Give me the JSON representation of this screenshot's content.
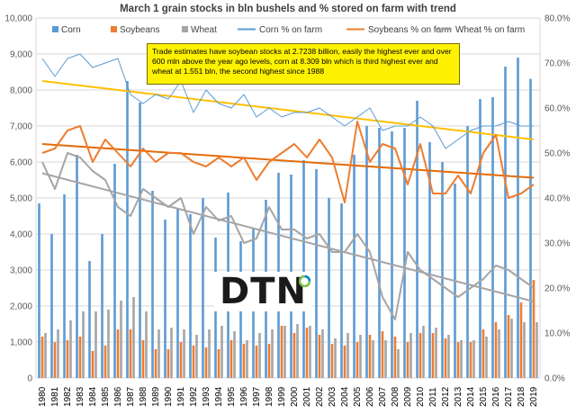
{
  "chart_data": {
    "type": "bar",
    "title": "March 1 grain stocks in bln bushels and % stored on farm with trend",
    "categories": [
      "1980",
      "1981",
      "1982",
      "1983",
      "1984",
      "1985",
      "1986",
      "1987",
      "1988",
      "1989",
      "1990",
      "1991",
      "1992",
      "1993",
      "1994",
      "1995",
      "1996",
      "1997",
      "1998",
      "1999",
      "2000",
      "2001",
      "2002",
      "2003",
      "2004",
      "2005",
      "2006",
      "2007",
      "2008",
      "2009",
      "2010",
      "2011",
      "2012",
      "2013",
      "2014",
      "2015",
      "2016",
      "2017",
      "2018",
      "2019"
    ],
    "left_axis": {
      "min": 0,
      "max": 10000,
      "ticks": [
        "0",
        "1,000",
        "2,000",
        "3,000",
        "4,000",
        "5,000",
        "6,000",
        "7,000",
        "8,000",
        "9,000",
        "10,000"
      ]
    },
    "right_axis": {
      "min": 0,
      "max": 80,
      "ticks": [
        "0.0%",
        "10.0%",
        "20.0%",
        "30.0%",
        "40.0%",
        "50.0%",
        "60.0%",
        "70.0%",
        "80.0%"
      ]
    },
    "bar_series": [
      {
        "name": "Corn",
        "color": "#5b9bd5",
        "values": [
          4850,
          4000,
          5100,
          6200,
          3250,
          4000,
          5950,
          8250,
          7650,
          5200,
          4400,
          4700,
          4550,
          5000,
          3900,
          5150,
          3800,
          4150,
          4950,
          5700,
          5650,
          6050,
          5800,
          5000,
          4850,
          6200,
          7000,
          6950,
          6850,
          6950,
          7700,
          6550,
          6000,
          5400,
          7000,
          7750,
          7800,
          8650,
          8900,
          8309
        ]
      },
      {
        "name": "Soybeans",
        "color": "#ed7d31",
        "values": [
          1150,
          1000,
          1050,
          1150,
          750,
          900,
          1350,
          1350,
          1050,
          800,
          800,
          1000,
          900,
          850,
          800,
          1050,
          950,
          900,
          950,
          1450,
          1250,
          1400,
          1200,
          950,
          900,
          1000,
          1200,
          1300,
          1150,
          1000,
          1250,
          1250,
          1100,
          1000,
          1000,
          1350,
          1550,
          1750,
          2100,
          2724
        ]
      },
      {
        "name": "Wheat",
        "color": "#a5a5a5",
        "values": [
          1250,
          1350,
          1600,
          1850,
          1850,
          1900,
          2150,
          2250,
          1850,
          1350,
          1400,
          1350,
          1200,
          1350,
          1450,
          1300,
          1050,
          1250,
          1350,
          1450,
          1500,
          1450,
          1350,
          1100,
          1250,
          1200,
          1050,
          1050,
          800,
          1250,
          1450,
          1400,
          1200,
          1050,
          1050,
          1150,
          1350,
          1650,
          1550,
          1551
        ]
      }
    ],
    "line_series": [
      {
        "name": "Corn % on farm",
        "color": "#5b9bd5",
        "values": [
          71,
          67,
          71,
          72,
          69,
          70,
          71,
          63,
          61,
          63,
          62,
          66,
          59,
          64,
          61,
          60,
          63,
          58,
          60,
          58,
          59,
          59,
          60,
          58,
          56,
          58,
          60,
          55,
          56,
          56,
          58,
          56,
          51,
          53,
          55,
          56,
          56,
          57,
          56,
          56
        ]
      },
      {
        "name": "Soybeans % on farm",
        "color": "#ed7d31",
        "values": [
          50,
          51,
          55,
          56,
          48,
          53,
          50,
          47,
          51,
          48,
          50,
          50,
          48,
          47,
          49,
          47,
          49,
          44,
          48,
          50,
          52,
          49,
          53,
          49,
          39,
          57,
          48,
          52,
          51,
          43,
          52,
          41,
          41,
          45,
          41,
          50,
          54,
          40,
          41,
          43
        ]
      },
      {
        "name": "Wheat % on farm",
        "color": "#a5a5a5",
        "values": [
          48,
          42,
          50,
          49,
          46,
          44,
          38,
          36,
          42,
          40,
          38,
          40,
          32,
          38,
          35,
          36,
          30,
          31,
          38,
          33,
          33,
          31,
          32,
          28,
          28,
          32,
          28,
          18,
          13,
          28,
          24,
          22,
          20,
          18,
          20,
          22,
          25,
          24,
          22,
          20
        ]
      }
    ],
    "trend_lines": [
      {
        "of": "Corn % on farm",
        "color": "#ffc000",
        "start": 66,
        "end": 53
      },
      {
        "of": "Soybeans % on farm",
        "color": "#e46c0a",
        "start": 52,
        "end": 44.5
      },
      {
        "of": "Wheat % on farm",
        "color": "#a5a5a5",
        "start": 45.5,
        "end": 17
      }
    ],
    "legend_position": "top"
  },
  "callout_text": "Trade estimates have soybean stocks at 2.7238 billion, easily the highest ever and over 600 mln above the year ago levels, corn at 8.309 bln which is third highest ever and wheat at 1.551 bln, the second highest since 1988",
  "logo_text": "DTN"
}
